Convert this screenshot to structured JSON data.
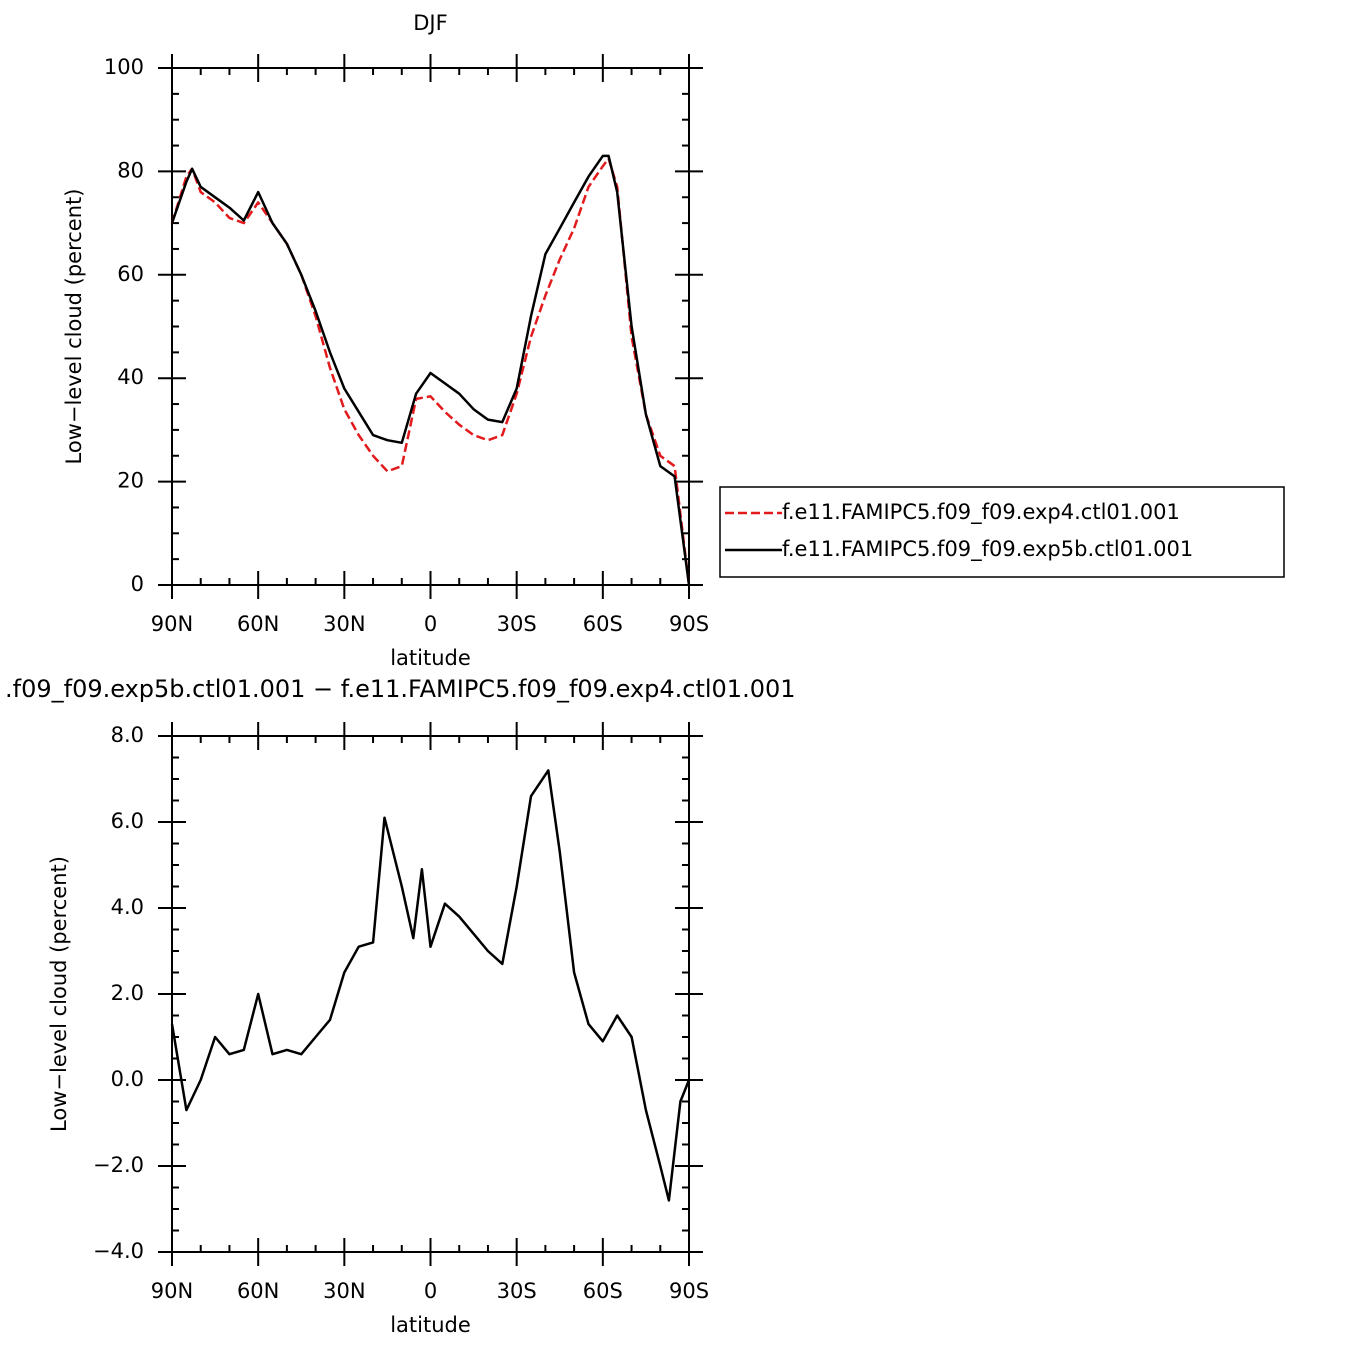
{
  "chart_data": [
    {
      "type": "line",
      "title": "DJF",
      "x_label": "latitude",
      "y_label": "Low−level cloud (percent)",
      "x": [
        90,
        85,
        83,
        80,
        75,
        70,
        65,
        60,
        55,
        50,
        45,
        40,
        35,
        30,
        25,
        20,
        15,
        10,
        5,
        0,
        -5,
        -10,
        -15,
        -20,
        -25,
        -30,
        -35,
        -40,
        -45,
        -50,
        -55,
        -60,
        -62,
        -65,
        -70,
        -75,
        -80,
        -85,
        -90
      ],
      "series": [
        {
          "name": "f.e11.FAMIPC5.f09_f09.exp4.ctl01.001",
          "color": "#e31a1c",
          "dash": true,
          "values": [
            70,
            79,
            80.5,
            76,
            74,
            71,
            70,
            74,
            70,
            66,
            60,
            52,
            42,
            34,
            29,
            25,
            22,
            23,
            36,
            36.5,
            33.5,
            31,
            29,
            28,
            29,
            37,
            48,
            56,
            63,
            69,
            77,
            81,
            82.5,
            77,
            48,
            33,
            25,
            23,
            0
          ]
        },
        {
          "name": "f.e11.FAMIPC5.f09_f09.exp5b.ctl01.001",
          "color": "#000000",
          "dash": false,
          "values": [
            70,
            78,
            80.5,
            77,
            75,
            73,
            70.5,
            76,
            70,
            66,
            60,
            53,
            45,
            38,
            33.5,
            29,
            28,
            27.5,
            37,
            41,
            39,
            37,
            34,
            32,
            31.5,
            38,
            52,
            64,
            69,
            74,
            79,
            83,
            83,
            76,
            50,
            33,
            23,
            21,
            0
          ]
        }
      ],
      "xlim": [
        90,
        -90
      ],
      "xticks": [
        {
          "value": 90,
          "label": "90N"
        },
        {
          "value": 60,
          "label": "60N"
        },
        {
          "value": 30,
          "label": "30N"
        },
        0,
        {
          "value": -30,
          "label": "30S"
        },
        {
          "value": -60,
          "label": "60S"
        },
        {
          "value": -90,
          "label": "90S"
        }
      ],
      "ylim": [
        0,
        100
      ],
      "yticks": [
        0,
        20,
        40,
        60,
        80,
        100
      ],
      "legend": "right"
    },
    {
      "type": "line",
      "title": ".f09_f09.exp5b.ctl01.001 − f.e11.FAMIPC5.f09_f09.exp4.ctl01.001",
      "x_label": "latitude",
      "y_label": "Low−level cloud (percent)",
      "x": [
        90,
        85,
        80,
        75,
        70,
        65,
        60,
        55,
        50,
        45,
        40,
        35,
        30,
        25,
        20,
        16,
        10,
        6,
        3,
        0,
        -5,
        -10,
        -15,
        -20,
        -25,
        -30,
        -35,
        -41,
        -45,
        -50,
        -55,
        -60,
        -65,
        -70,
        -75,
        -80,
        -83,
        -87,
        -90
      ],
      "series": [
        {
          "color": "#000000",
          "dash": false,
          "values": [
            1.3,
            -0.7,
            0.0,
            1.0,
            0.6,
            0.7,
            2.0,
            0.6,
            0.7,
            0.6,
            1.0,
            1.4,
            2.5,
            3.1,
            3.2,
            6.1,
            4.5,
            3.3,
            4.9,
            3.1,
            4.1,
            3.8,
            3.4,
            3.0,
            2.7,
            4.5,
            6.6,
            7.2,
            5.3,
            2.5,
            1.3,
            0.9,
            1.5,
            1.0,
            -0.7,
            -2.0,
            -2.8,
            -0.5,
            0
          ]
        }
      ],
      "xlim": [
        90,
        -90
      ],
      "xticks": [
        {
          "value": 90,
          "label": "90N"
        },
        {
          "value": 60,
          "label": "60N"
        },
        {
          "value": 30,
          "label": "30N"
        },
        0,
        {
          "value": -30,
          "label": "30S"
        },
        {
          "value": -60,
          "label": "60S"
        },
        {
          "value": -90,
          "label": "90S"
        }
      ],
      "ylim": [
        -4,
        8
      ],
      "yticks": [
        {
          "value": -4,
          "label": "−4.0"
        },
        {
          "value": -2,
          "label": "−2.0"
        },
        {
          "value": 0,
          "label": "0.0"
        },
        {
          "value": 2,
          "label": "2.0"
        },
        {
          "value": 4,
          "label": "4.0"
        },
        {
          "value": 6,
          "label": "6.0"
        },
        {
          "value": 8,
          "label": "8.0"
        }
      ]
    }
  ]
}
